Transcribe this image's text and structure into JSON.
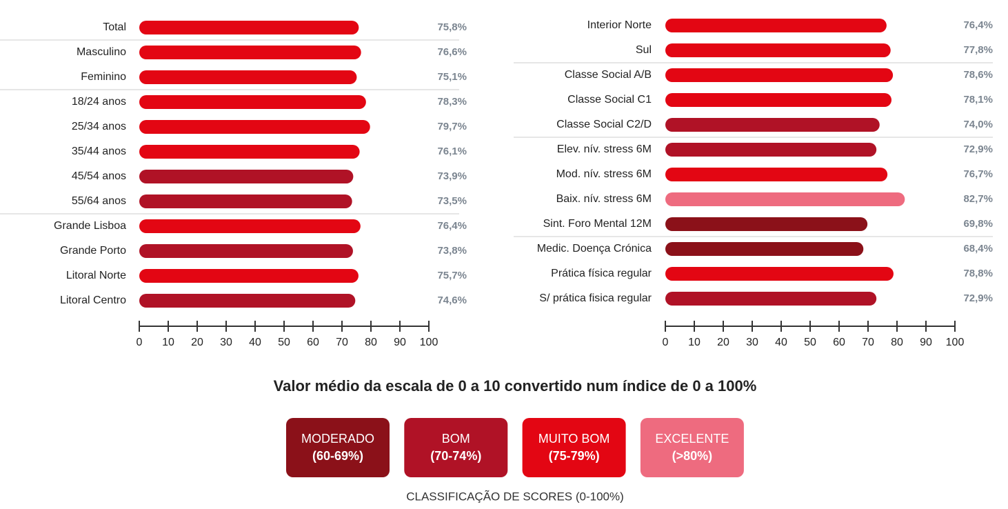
{
  "chart_data": [
    {
      "type": "bar",
      "categories": [
        "Total",
        "Masculino",
        "Feminino",
        "18/24 anos",
        "25/34 anos",
        "35/44 anos",
        "45/54 anos",
        "55/64 anos",
        "Grande Lisboa",
        "Grande Porto",
        "Litoral Norte",
        "Litoral Centro"
      ],
      "values": [
        75.8,
        76.6,
        75.1,
        78.3,
        79.7,
        76.1,
        73.9,
        73.5,
        76.4,
        73.8,
        75.7,
        74.6
      ],
      "value_labels": [
        "75,8%",
        "76,6%",
        "75,1%",
        "78,3%",
        "79,7%",
        "76,1%",
        "73,9%",
        "73,5%",
        "76,4%",
        "73,8%",
        "75,7%",
        "74,6%"
      ],
      "colors": [
        "#e30613",
        "#e30613",
        "#e30613",
        "#e30613",
        "#e30613",
        "#e30613",
        "#b01226",
        "#b01226",
        "#e30613",
        "#b01226",
        "#e30613",
        "#b01226"
      ],
      "xlim": [
        0,
        100
      ],
      "xticks": [
        0,
        10,
        20,
        30,
        40,
        50,
        60,
        70,
        80,
        90,
        100
      ]
    },
    {
      "type": "bar",
      "categories": [
        "Interior Norte",
        "Sul",
        "Classe Social A/B",
        "Classe Social C1",
        "Classe Social C2/D",
        "Elev. nív. stress 6M",
        "Mod. nív. stress 6M",
        "Baix. nív. stress 6M",
        "Sint. Foro Mental 12M",
        "Medic. Doença Crónica",
        "Prática física regular",
        "S/ prática fisica regular"
      ],
      "values": [
        76.4,
        77.8,
        78.6,
        78.1,
        74.0,
        72.9,
        76.7,
        82.7,
        69.8,
        68.4,
        78.8,
        72.9
      ],
      "value_labels": [
        "76,4%",
        "77,8%",
        "78,6%",
        "78,1%",
        "74,0%",
        "72,9%",
        "76,7%",
        "82,7%",
        "69,8%",
        "68,4%",
        "78,8%",
        "72,9%"
      ],
      "colors": [
        "#e30613",
        "#e30613",
        "#e30613",
        "#e30613",
        "#b01226",
        "#b01226",
        "#e30613",
        "#ee6b7f",
        "#8b1119",
        "#8b1119",
        "#e30613",
        "#b01226"
      ],
      "xlim": [
        0,
        100
      ],
      "xticks": [
        0,
        10,
        20,
        30,
        40,
        50,
        60,
        70,
        80,
        90,
        100
      ]
    }
  ],
  "note": "Valor médio da escala de 0 a 10 convertido num índice de 0 a 100%",
  "legend": {
    "title": "CLASSIFICAÇÃO DE SCORES (0-100%)",
    "items": [
      {
        "name": "MODERADO",
        "range": "(60-69%)",
        "color": "#8b1119"
      },
      {
        "name": "BOM",
        "range": "(70-74%)",
        "color": "#b01226"
      },
      {
        "name": "MUITO BOM",
        "range": "(75-79%)",
        "color": "#e30613"
      },
      {
        "name": "EXCELENTE",
        "range": "(>80%)",
        "color": "#ee6b7f"
      }
    ]
  }
}
